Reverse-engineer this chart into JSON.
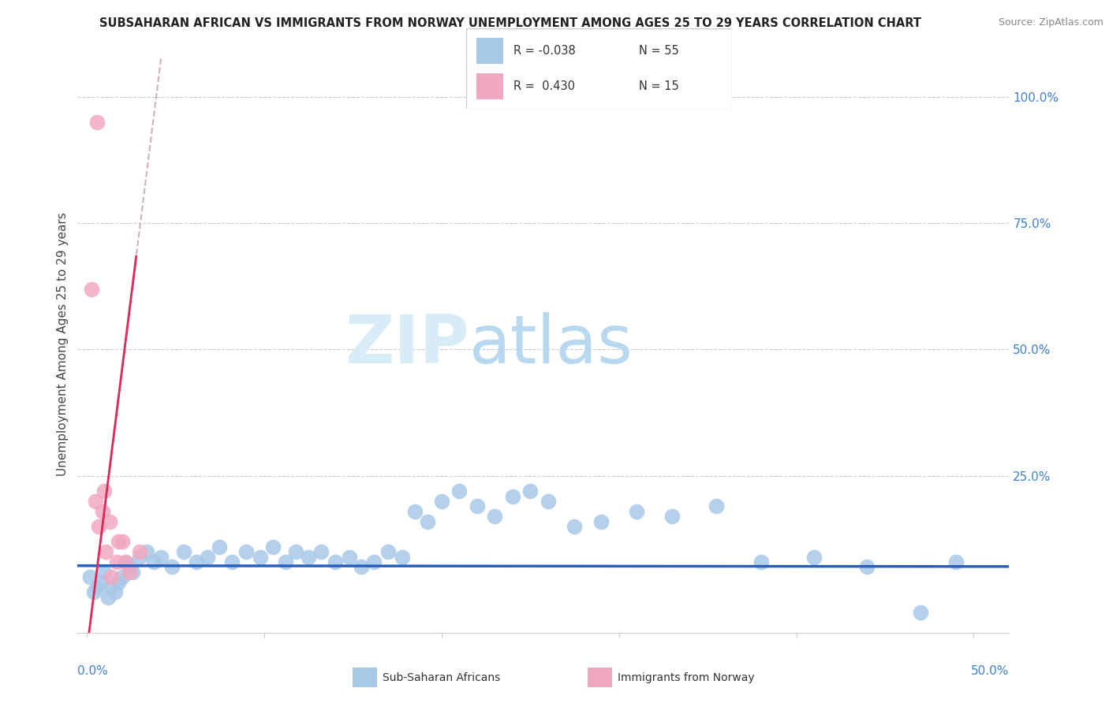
{
  "title": "SUBSAHARAN AFRICAN VS IMMIGRANTS FROM NORWAY UNEMPLOYMENT AMONG AGES 25 TO 29 YEARS CORRELATION CHART",
  "source": "Source: ZipAtlas.com",
  "ylabel": "Unemployment Among Ages 25 to 29 years",
  "ylabel_right_ticks": [
    "100.0%",
    "75.0%",
    "50.0%",
    "25.0%"
  ],
  "ylabel_right_vals": [
    1.0,
    0.75,
    0.5,
    0.25
  ],
  "legend_blue_R": "-0.038",
  "legend_blue_N": "55",
  "legend_pink_R": "0.430",
  "legend_pink_N": "15",
  "legend_label_blue": "Sub-Saharan Africans",
  "legend_label_pink": "Immigrants from Norway",
  "blue_color": "#a8c8e8",
  "pink_color": "#f0a8c0",
  "blue_line_color": "#2860c0",
  "pink_line_color": "#e02858",
  "pink_dash_color": "#d0b0c0",
  "blue_scatter_x": [
    0.002,
    0.004,
    0.006,
    0.008,
    0.01,
    0.012,
    0.014,
    0.016,
    0.018,
    0.02,
    0.022,
    0.024,
    0.026,
    0.03,
    0.034,
    0.038,
    0.042,
    0.048,
    0.055,
    0.062,
    0.068,
    0.075,
    0.082,
    0.09,
    0.098,
    0.105,
    0.112,
    0.118,
    0.125,
    0.132,
    0.14,
    0.148,
    0.155,
    0.162,
    0.17,
    0.178,
    0.185,
    0.192,
    0.2,
    0.21,
    0.22,
    0.23,
    0.24,
    0.25,
    0.26,
    0.275,
    0.29,
    0.31,
    0.33,
    0.355,
    0.38,
    0.41,
    0.44,
    0.47,
    0.49
  ],
  "blue_scatter_y": [
    0.05,
    0.02,
    0.03,
    0.04,
    0.06,
    0.01,
    0.03,
    0.02,
    0.04,
    0.05,
    0.08,
    0.07,
    0.06,
    0.09,
    0.1,
    0.08,
    0.09,
    0.07,
    0.1,
    0.08,
    0.09,
    0.11,
    0.08,
    0.1,
    0.09,
    0.11,
    0.08,
    0.1,
    0.09,
    0.1,
    0.08,
    0.09,
    0.07,
    0.08,
    0.1,
    0.09,
    0.18,
    0.16,
    0.2,
    0.22,
    0.19,
    0.17,
    0.21,
    0.22,
    0.2,
    0.15,
    0.16,
    0.18,
    0.17,
    0.19,
    0.08,
    0.09,
    0.07,
    -0.02,
    0.08
  ],
  "pink_scatter_x": [
    0.003,
    0.005,
    0.007,
    0.009,
    0.011,
    0.014,
    0.017,
    0.02,
    0.024,
    0.03,
    0.006,
    0.01,
    0.013,
    0.018,
    0.022
  ],
  "pink_scatter_y": [
    0.62,
    0.2,
    0.15,
    0.18,
    0.1,
    0.05,
    0.08,
    0.12,
    0.06,
    0.1,
    0.95,
    0.22,
    0.16,
    0.12,
    0.08
  ],
  "watermark_zip": "ZIP",
  "watermark_atlas": "atlas",
  "watermark_color": "#d8ecf8",
  "xlim": [
    -0.005,
    0.52
  ],
  "ylim": [
    -0.06,
    1.08
  ]
}
